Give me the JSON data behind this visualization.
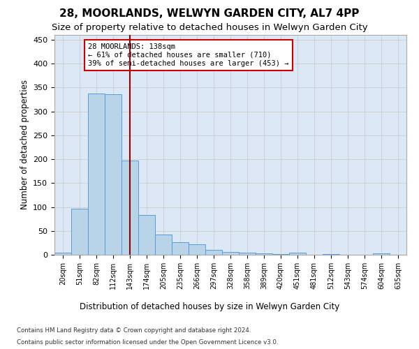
{
  "title": "28, MOORLANDS, WELWYN GARDEN CITY, AL7 4PP",
  "subtitle": "Size of property relative to detached houses in Welwyn Garden City",
  "xlabel": "Distribution of detached houses by size in Welwyn Garden City",
  "ylabel": "Number of detached properties",
  "footnote1": "Contains HM Land Registry data © Crown copyright and database right 2024.",
  "footnote2": "Contains public sector information licensed under the Open Government Licence v3.0.",
  "bin_labels": [
    "20sqm",
    "51sqm",
    "82sqm",
    "112sqm",
    "143sqm",
    "174sqm",
    "205sqm",
    "235sqm",
    "266sqm",
    "297sqm",
    "328sqm",
    "358sqm",
    "389sqm",
    "420sqm",
    "451sqm",
    "481sqm",
    "512sqm",
    "543sqm",
    "574sqm",
    "604sqm",
    "635sqm"
  ],
  "bar_values": [
    5,
    97,
    338,
    336,
    197,
    83,
    42,
    26,
    22,
    10,
    6,
    4,
    3,
    1,
    4,
    0,
    1,
    0,
    0,
    3,
    0
  ],
  "bar_color": "#b8d4e8",
  "bar_edge_color": "#5b9bd5",
  "vline_x": 4,
  "vline_color": "#990000",
  "annotation_text": "28 MOORLANDS: 138sqm\n← 61% of detached houses are smaller (710)\n39% of semi-detached houses are larger (453) →",
  "annotation_box_color": "#ffffff",
  "annotation_box_edge": "#cc0000",
  "ylim": [
    0,
    460
  ],
  "yticks": [
    0,
    50,
    100,
    150,
    200,
    250,
    300,
    350,
    400,
    450
  ],
  "grid_color": "#cccccc",
  "background_color": "#dce8f5",
  "title_fontsize": 11,
  "subtitle_fontsize": 9.5
}
